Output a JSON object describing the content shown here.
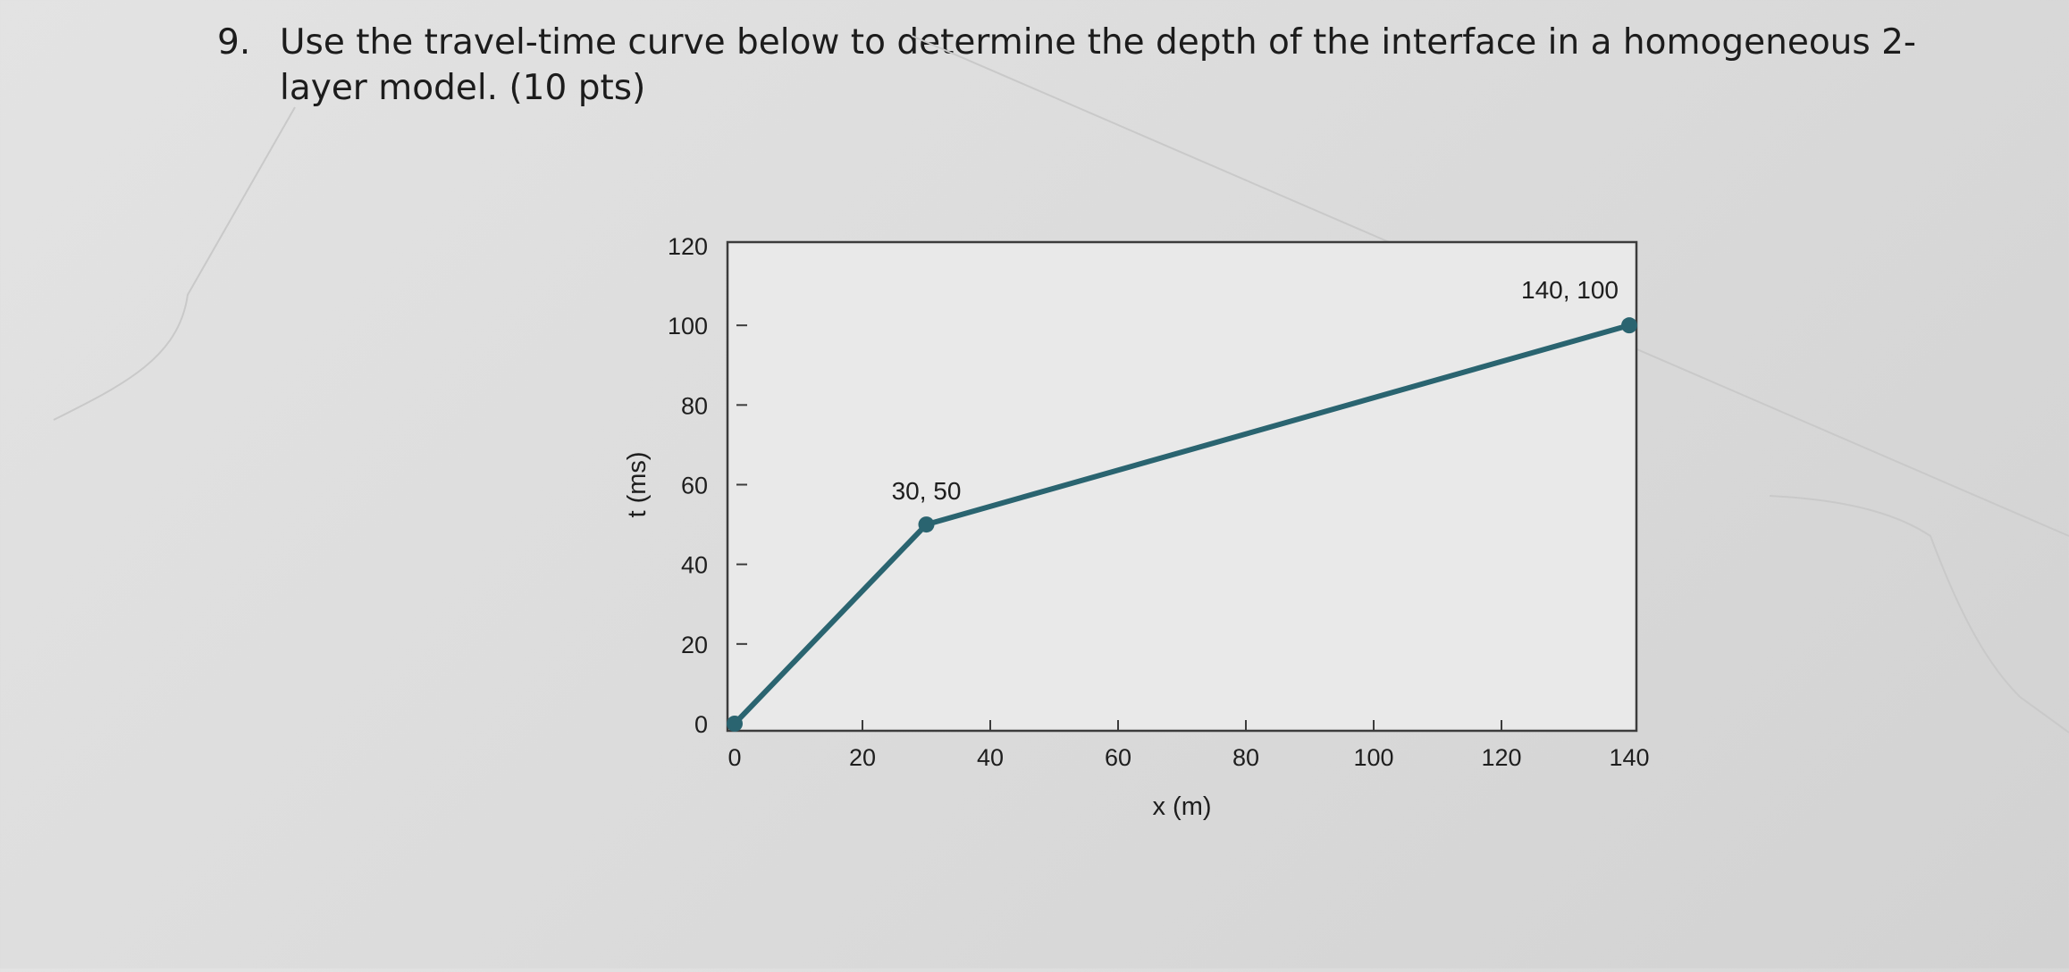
{
  "question": {
    "number": "9.",
    "text": "Use the travel-time curve below to determine the depth of the interface in a homogeneous 2-layer model. (10 pts)"
  },
  "chart_data": {
    "type": "line",
    "xlabel": "x (m)",
    "ylabel": "t (ms)",
    "xlim": [
      0,
      140
    ],
    "ylim": [
      0,
      120
    ],
    "x_ticks": [
      0,
      20,
      40,
      60,
      80,
      100,
      120,
      140
    ],
    "y_ticks": [
      0,
      20,
      40,
      60,
      80,
      100,
      120
    ],
    "grid": false,
    "series": [
      {
        "x": [
          0,
          30,
          140
        ],
        "y": [
          0,
          50,
          100
        ]
      }
    ],
    "annotations": [
      {
        "x": 30,
        "y": 50,
        "text": "30, 50"
      },
      {
        "x": 140,
        "y": 100,
        "text": "140, 100"
      }
    ],
    "line_color": "#2a6470"
  }
}
